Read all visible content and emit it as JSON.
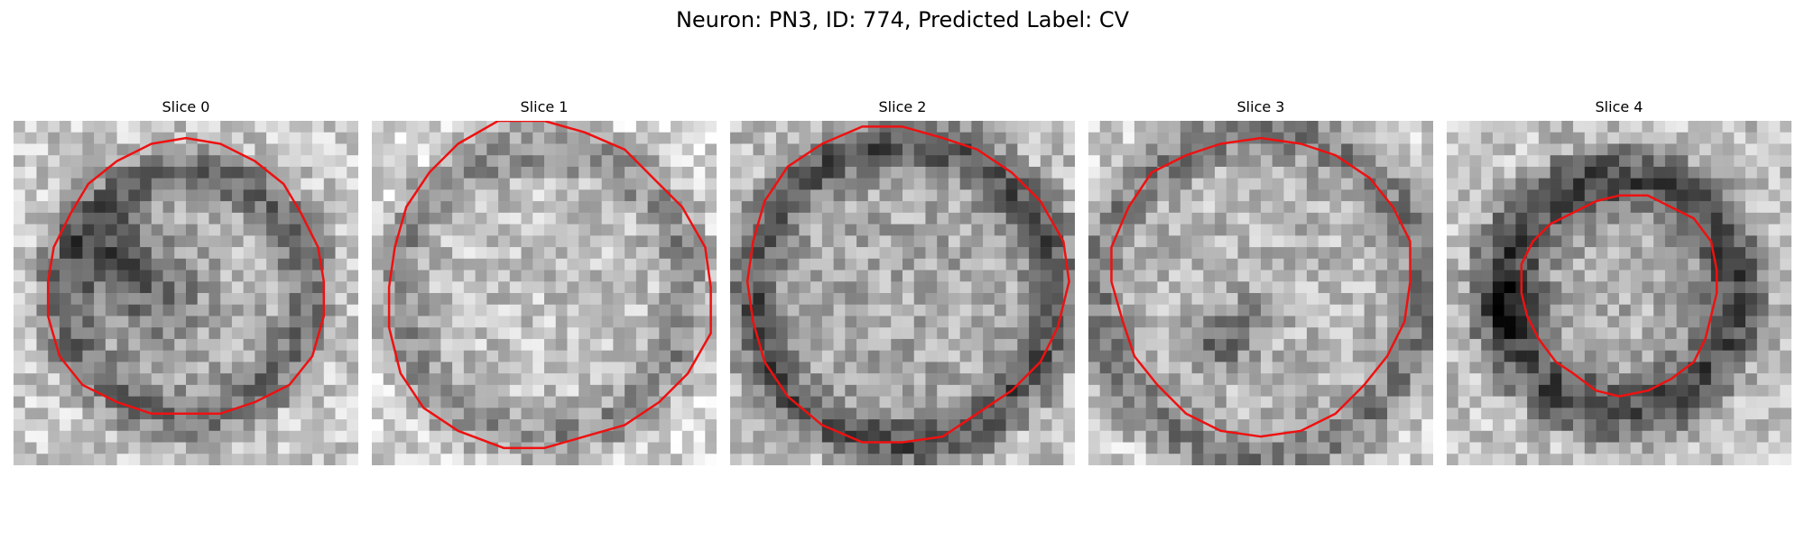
{
  "figure": {
    "title": "Neuron: PN3, ID: 774, Predicted Label: CV",
    "contour_color": "#ee1111",
    "colormap": "gray",
    "panels": [
      {
        "label": "Slice 0"
      },
      {
        "label": "Slice 1"
      },
      {
        "label": "Slice 2"
      },
      {
        "label": "Slice 3"
      },
      {
        "label": "Slice 4"
      }
    ]
  }
}
